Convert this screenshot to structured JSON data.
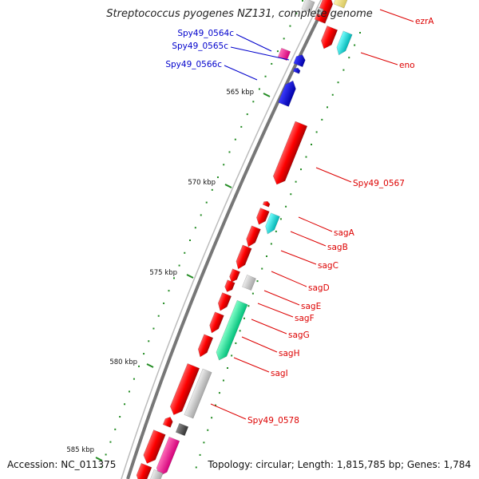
{
  "title": "Streptococcus pyogenes NZ131, complete genome",
  "footer": {
    "accession": "Accession: NC_011375",
    "topology": "Topology: circular; Length: 1,815,785 bp; Genes: 1,784"
  },
  "scale_ticks": [
    {
      "label": "565 kbp"
    },
    {
      "label": "570 kbp"
    },
    {
      "label": "575 kbp"
    },
    {
      "label": "580 kbp"
    },
    {
      "label": "585 kbp"
    }
  ],
  "genes": [
    {
      "name": "ezrA",
      "color": "#dd0000",
      "strand": "reverse"
    },
    {
      "name": "eno",
      "color": "#dd0000",
      "strand": "reverse"
    },
    {
      "name": "Spy49_0564c",
      "color": "#0000cc"
    },
    {
      "name": "Spy49_0565c",
      "color": "#0000cc"
    },
    {
      "name": "Spy49_0566c",
      "color": "#0000cc"
    },
    {
      "name": "Spy49_0567",
      "color": "#dd0000"
    },
    {
      "name": "sagA",
      "color": "#dd0000"
    },
    {
      "name": "sagB",
      "color": "#dd0000"
    },
    {
      "name": "sagC",
      "color": "#dd0000"
    },
    {
      "name": "sagD",
      "color": "#dd0000"
    },
    {
      "name": "sagE",
      "color": "#dd0000"
    },
    {
      "name": "sagF",
      "color": "#dd0000"
    },
    {
      "name": "sagG",
      "color": "#dd0000"
    },
    {
      "name": "sagH",
      "color": "#dd0000"
    },
    {
      "name": "sagI",
      "color": "#dd0000"
    },
    {
      "name": "Spy49_0578",
      "color": "#dd0000"
    }
  ],
  "colors": {
    "cds_forward": "#ff0000",
    "cds_cyan": "#00d8d8",
    "cds_blue": "#0000dd",
    "cds_magenta": "#ff1493",
    "cds_green": "#00ee99",
    "cds_gray": "#c8c8c8",
    "cds_darkgray": "#555555",
    "cds_yellow": "#f0e68c",
    "backbone": "#888888",
    "tick_major": "#228b22",
    "label_blue": "#0000cc",
    "label_red": "#dd0000"
  }
}
